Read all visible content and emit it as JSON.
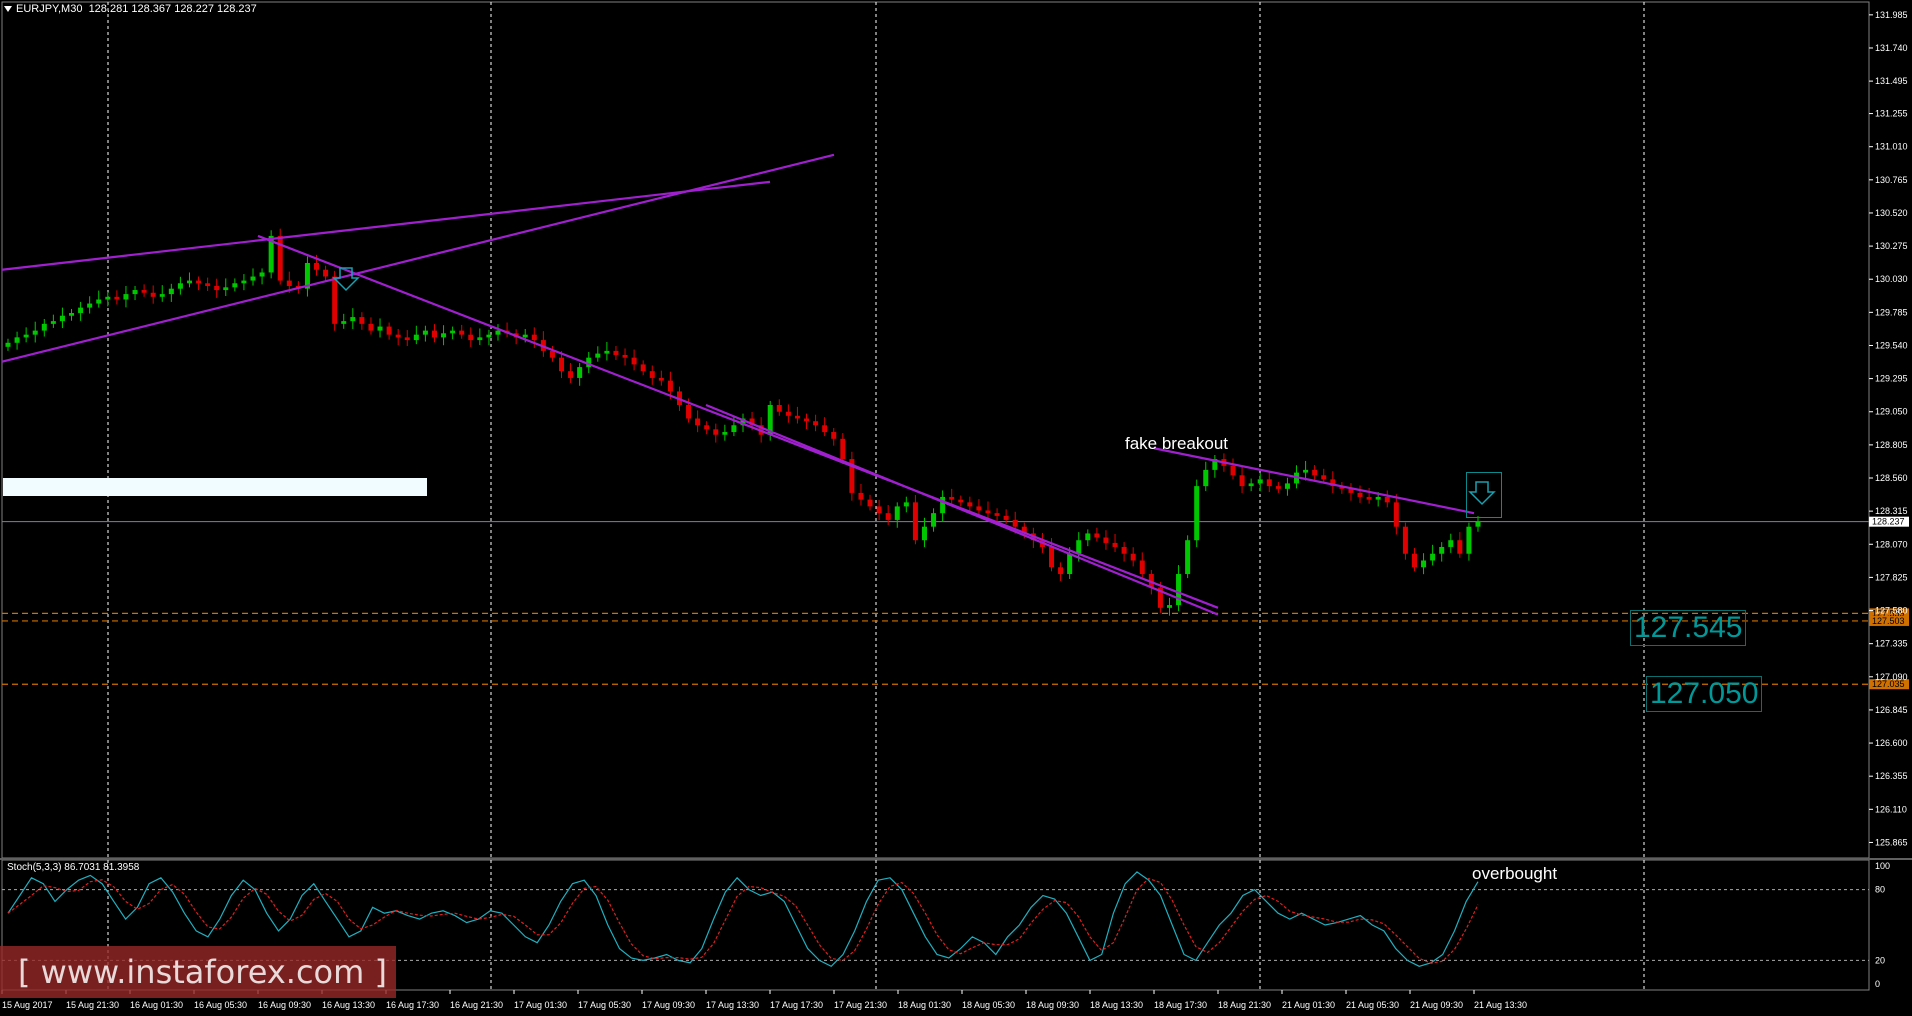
{
  "header": {
    "symbol": "EURJPY,M30",
    "quote": "128.281 128.367 128.227 128.237"
  },
  "price_axis": {
    "labels": [
      "131.985",
      "131.740",
      "131.495",
      "131.255",
      "131.010",
      "130.765",
      "130.520",
      "130.275",
      "130.030",
      "129.785",
      "129.540",
      "129.295",
      "129.050",
      "128.805",
      "128.560",
      "128.315",
      "128.070",
      "127.825",
      "127.580",
      "127.335",
      "127.090",
      "126.845",
      "126.600",
      "126.355",
      "126.110",
      "125.865"
    ],
    "current_price": "128.237",
    "level_tags": [
      "127.559",
      "127.503",
      "127.035"
    ]
  },
  "time_axis": {
    "labels": [
      "15 Aug 2017",
      "15 Aug 21:30",
      "16 Aug 01:30",
      "16 Aug 05:30",
      "16 Aug 09:30",
      "16 Aug 13:30",
      "16 Aug 17:30",
      "16 Aug 21:30",
      "17 Aug 01:30",
      "17 Aug 05:30",
      "17 Aug 09:30",
      "17 Aug 13:30",
      "17 Aug 17:30",
      "17 Aug 21:30",
      "18 Aug 01:30",
      "18 Aug 05:30",
      "18 Aug 09:30",
      "18 Aug 13:30",
      "18 Aug 17:30",
      "18 Aug 21:30",
      "21 Aug 01:30",
      "21 Aug 05:30",
      "21 Aug 09:30",
      "21 Aug 13:30"
    ]
  },
  "annotations": {
    "fake_breakout": "fake breakout",
    "overbought": "overbought",
    "level1": "127.545",
    "level2": "127.050"
  },
  "stochastic": {
    "label": "Stoch(5,3,3) 86.7031 81.3958",
    "scale": [
      "100",
      "80",
      "20",
      "0"
    ]
  },
  "watermark": "[ www.instaforex.com ]",
  "colors": {
    "bull": "#00c800",
    "bear": "#e00000",
    "trendline": "#a020d0",
    "support": "#d07000",
    "stoch_main": "#20b0c0",
    "stoch_signal": "#e02020",
    "grid": "#ffffff",
    "level_text": "#00999a"
  },
  "chart_data": {
    "type": "candlestick",
    "symbol": "EURJPY",
    "timeframe": "M30",
    "ylim": [
      125.865,
      132.05
    ],
    "close_series": [
      129.56,
      129.6,
      129.62,
      129.65,
      129.7,
      129.72,
      129.76,
      129.78,
      129.82,
      129.85,
      129.88,
      129.9,
      129.88,
      129.92,
      129.95,
      129.93,
      129.9,
      129.92,
      129.96,
      130.0,
      130.02,
      130.0,
      129.98,
      129.95,
      129.97,
      130.0,
      130.02,
      130.05,
      130.08,
      130.35,
      130.02,
      129.98,
      129.96,
      130.15,
      130.1,
      130.05,
      129.7,
      129.72,
      129.75,
      129.7,
      129.65,
      129.68,
      129.62,
      129.6,
      129.58,
      129.62,
      129.65,
      129.6,
      129.63,
      129.65,
      129.62,
      129.58,
      129.6,
      129.62,
      129.65,
      129.63,
      129.6,
      129.62,
      129.58,
      129.5,
      129.45,
      129.35,
      129.3,
      129.38,
      129.45,
      129.48,
      129.5,
      129.47,
      129.45,
      129.4,
      129.35,
      129.3,
      129.28,
      129.2,
      129.1,
      129.0,
      128.95,
      128.92,
      128.88,
      128.9,
      128.95,
      129.0,
      128.95,
      128.88,
      129.1,
      129.05,
      129.02,
      129.0,
      128.98,
      128.95,
      128.9,
      128.85,
      128.7,
      128.45,
      128.4,
      128.35,
      128.3,
      128.25,
      128.35,
      128.38,
      128.1,
      128.2,
      128.3,
      128.42,
      128.4,
      128.38,
      128.35,
      128.32,
      128.3,
      128.28,
      128.25,
      128.2,
      128.15,
      128.1,
      128.05,
      127.9,
      127.85,
      128.0,
      128.1,
      128.15,
      128.12,
      128.08,
      128.05,
      128.0,
      127.95,
      127.85,
      127.75,
      127.6,
      127.62,
      127.85,
      128.1,
      128.5,
      128.62,
      128.7,
      128.65,
      128.58,
      128.5,
      128.52,
      128.55,
      128.5,
      128.48,
      128.52,
      128.6,
      128.62,
      128.58,
      128.55,
      128.5,
      128.48,
      128.45,
      128.42,
      128.4,
      128.42,
      128.38,
      128.2,
      128.0,
      127.9,
      127.95,
      128.0,
      128.05,
      128.1,
      128.0,
      128.2,
      128.237
    ],
    "trendlines": [
      {
        "from": [
          "15 Aug 2017",
          130.1
        ],
        "to": [
          "17 Aug 17:30",
          130.75
        ]
      },
      {
        "from": [
          "15 Aug 2017",
          129.42
        ],
        "to": [
          "17 Aug 21:30",
          130.95
        ]
      },
      {
        "from": [
          "16 Aug 09:30",
          130.35
        ],
        "to": [
          "18 Aug 21:30",
          127.6
        ]
      },
      {
        "from": [
          "17 Aug 13:30",
          129.1
        ],
        "to": [
          "18 Aug 21:30",
          127.55
        ]
      },
      {
        "from": [
          "18 Aug 17:30",
          128.78
        ],
        "to": [
          "21 Aug 13:30",
          128.3
        ]
      }
    ],
    "levels": [
      127.559,
      127.503,
      127.035
    ],
    "stoch_main": [
      60,
      75,
      90,
      85,
      70,
      80,
      88,
      92,
      85,
      70,
      55,
      65,
      85,
      90,
      78,
      60,
      45,
      40,
      55,
      75,
      88,
      80,
      60,
      45,
      55,
      75,
      85,
      70,
      55,
      40,
      45,
      65,
      60,
      62,
      58,
      55,
      60,
      62,
      58,
      52,
      55,
      62,
      60,
      50,
      40,
      35,
      50,
      70,
      85,
      88,
      75,
      50,
      30,
      22,
      20,
      22,
      25,
      20,
      18,
      30,
      55,
      78,
      90,
      80,
      75,
      78,
      70,
      50,
      30,
      20,
      15,
      25,
      45,
      70,
      88,
      90,
      80,
      60,
      40,
      25,
      22,
      30,
      40,
      35,
      25,
      40,
      50,
      65,
      75,
      72,
      60,
      40,
      20,
      25,
      60,
      85,
      95,
      88,
      75,
      50,
      25,
      20,
      35,
      50,
      60,
      75,
      80,
      70,
      60,
      55,
      60,
      55,
      50,
      52,
      55,
      58,
      50,
      45,
      30,
      20,
      15,
      18,
      25,
      45,
      70,
      86.7
    ]
  }
}
